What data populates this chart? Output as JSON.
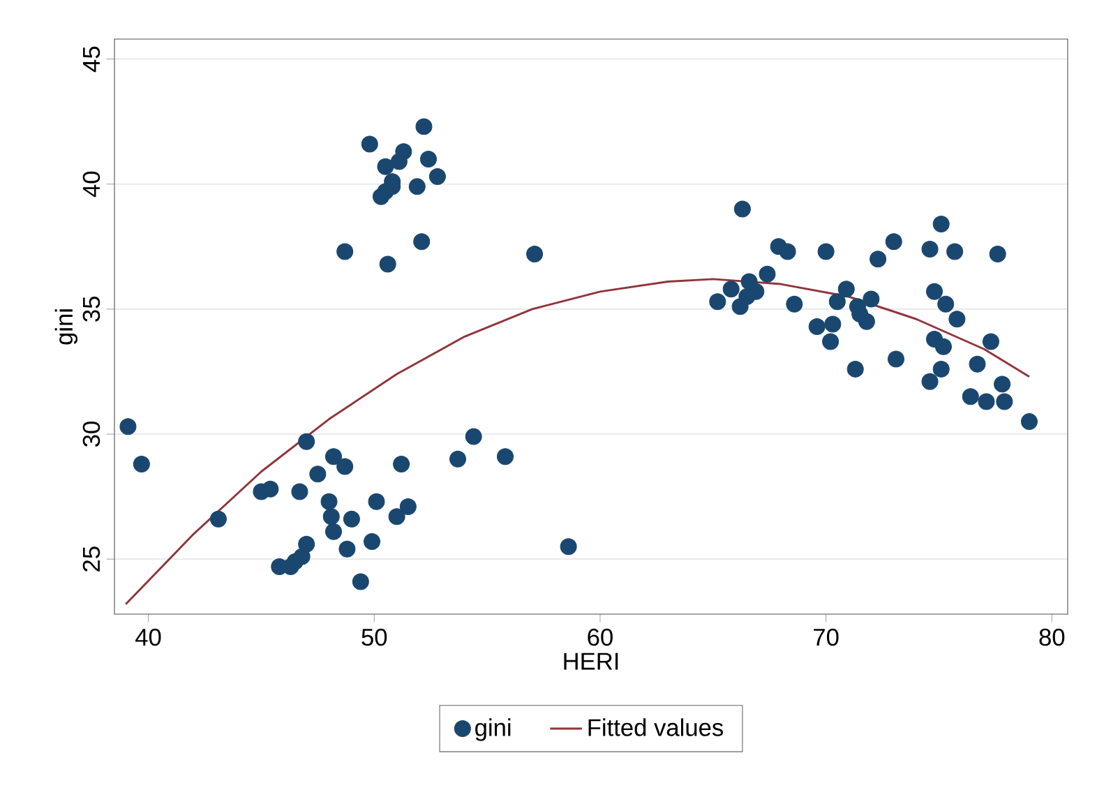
{
  "chart_data": {
    "type": "scatter",
    "xlabel": "HERI",
    "ylabel": "gini",
    "xlim": [
      38.5,
      80.7
    ],
    "ylim": [
      22.8,
      45.8
    ],
    "xticks": [
      40,
      50,
      60,
      70,
      80
    ],
    "yticks": [
      25,
      30,
      35,
      40,
      45
    ],
    "grid": "y",
    "legend": "bottom",
    "series": [
      {
        "name": "gini",
        "marker": "circle",
        "color": "#1a476f",
        "x": [
          39.1,
          39.7,
          43.1,
          45.0,
          45.4,
          47.0,
          48.2,
          48.7,
          47.5,
          46.7,
          48.0,
          48.1,
          48.2,
          49.0,
          50.1,
          51.0,
          51.5,
          51.2,
          53.7,
          54.4,
          55.8,
          58.6,
          47.0,
          46.8,
          45.8,
          46.3,
          46.5,
          48.8,
          49.9,
          49.4,
          52.2,
          49.8,
          51.3,
          52.4,
          51.1,
          50.5,
          52.8,
          50.8,
          50.8,
          50.3,
          50.5,
          51.9,
          48.7,
          50.6,
          52.1,
          57.1,
          66.3,
          75.1,
          73.0,
          67.9,
          68.3,
          70.0,
          72.3,
          74.6,
          75.7,
          77.6,
          67.4,
          66.6,
          65.8,
          66.9,
          66.5,
          65.2,
          66.2,
          68.6,
          70.9,
          70.5,
          72.0,
          71.4,
          71.5,
          71.8,
          69.6,
          70.3,
          70.2,
          71.3,
          73.1,
          74.8,
          75.3,
          75.8,
          74.8,
          75.2,
          77.3,
          75.1,
          74.6,
          76.7,
          77.8,
          76.4,
          77.1,
          77.9,
          79.0
        ],
        "values": [
          30.3,
          28.8,
          26.6,
          27.7,
          27.8,
          29.7,
          29.1,
          28.7,
          28.4,
          27.7,
          27.3,
          26.7,
          26.1,
          26.6,
          27.3,
          26.7,
          27.1,
          28.8,
          29.0,
          29.9,
          29.1,
          25.5,
          25.6,
          25.1,
          24.7,
          24.7,
          24.9,
          25.4,
          25.7,
          24.1,
          42.3,
          41.6,
          41.3,
          41.0,
          40.9,
          40.7,
          40.3,
          40.1,
          39.9,
          39.5,
          39.7,
          39.9,
          37.3,
          36.8,
          37.7,
          37.2,
          39.0,
          38.4,
          37.7,
          37.5,
          37.3,
          37.3,
          37.0,
          37.4,
          37.3,
          37.2,
          36.4,
          36.1,
          35.8,
          35.7,
          35.5,
          35.3,
          35.1,
          35.2,
          35.8,
          35.3,
          35.4,
          35.1,
          34.8,
          34.5,
          34.3,
          34.4,
          33.7,
          32.6,
          33.0,
          35.7,
          35.2,
          34.6,
          33.8,
          33.5,
          33.7,
          32.6,
          32.1,
          32.8,
          32.0,
          31.5,
          31.3,
          31.3,
          30.5
        ]
      },
      {
        "name": "Fitted values",
        "type": "line",
        "marker": "none",
        "line_style": "solid",
        "color": "#90353b",
        "x": [
          39,
          42,
          45,
          48,
          51,
          54,
          57,
          60,
          63,
          65,
          68,
          71,
          74,
          77,
          79
        ],
        "values": [
          23.2,
          26.0,
          28.5,
          30.6,
          32.4,
          33.9,
          35.0,
          35.7,
          36.1,
          36.2,
          36.0,
          35.5,
          34.6,
          33.4,
          32.3
        ]
      }
    ]
  }
}
